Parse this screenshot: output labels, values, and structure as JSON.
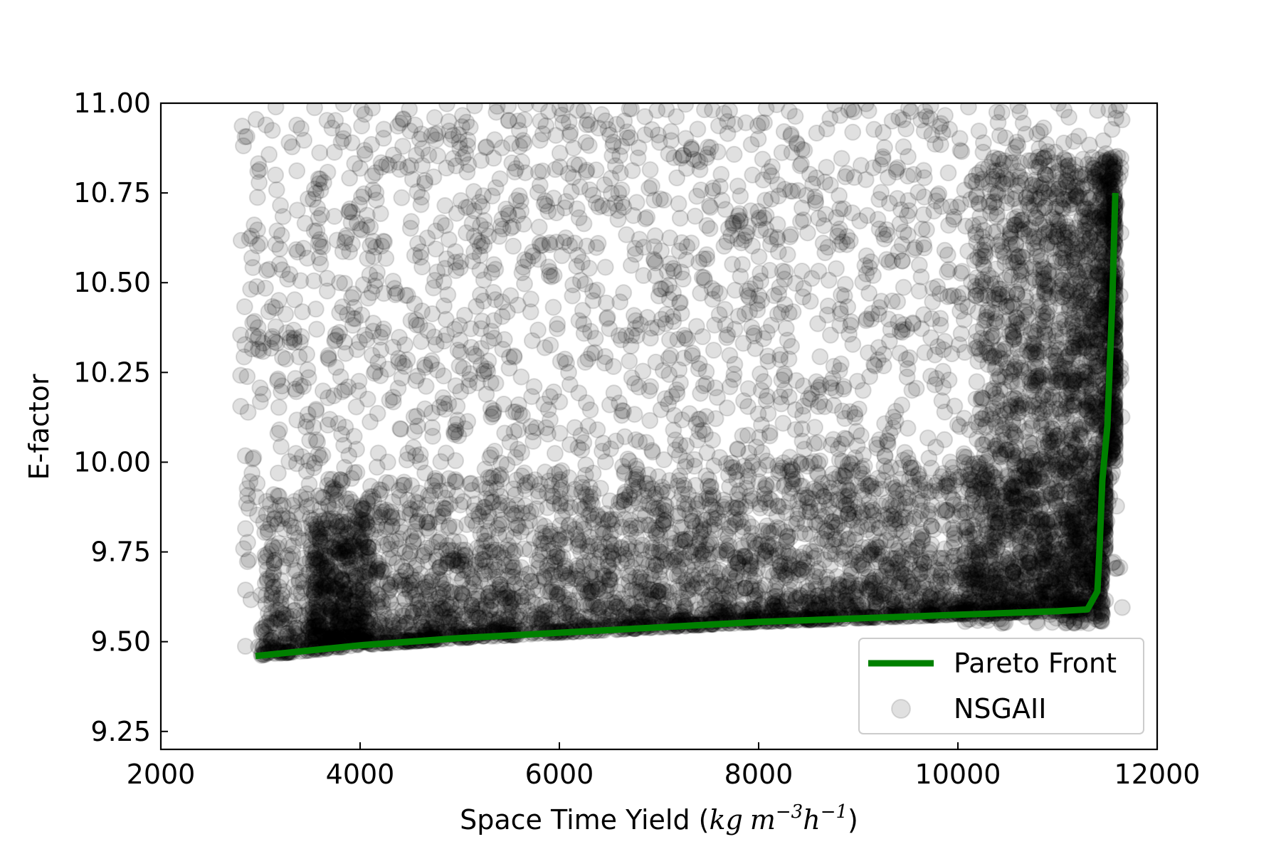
{
  "chart_data": {
    "type": "scatter",
    "xlabel": {
      "main": "Space Time Yield (",
      "unit_kg": "kg",
      "unit_m": "m",
      "exp_m": "−3",
      "unit_h": "h",
      "exp_h": "−1",
      "close": ")"
    },
    "ylabel": "E-factor",
    "xlim": [
      2000,
      12000
    ],
    "ylim": [
      9.2,
      11.0
    ],
    "xticks": [
      2000,
      4000,
      6000,
      8000,
      10000,
      12000
    ],
    "xtick_labels": [
      "2000",
      "4000",
      "6000",
      "8000",
      "10000",
      "12000"
    ],
    "yticks": [
      9.25,
      9.5,
      9.75,
      10.0,
      10.25,
      10.5,
      10.75,
      11.0
    ],
    "ytick_labels": [
      "9.25",
      "9.50",
      "9.75",
      "10.00",
      "10.25",
      "10.50",
      "10.75",
      "11.00"
    ],
    "grid": false,
    "legend_position": "lower-right",
    "series": [
      {
        "name": "Pareto Front",
        "kind": "line",
        "color": "#008000",
        "x": [
          2950,
          4000,
          5000,
          6000,
          7000,
          8000,
          9000,
          10000,
          11000,
          11300,
          11400,
          11420,
          11450,
          11500,
          11550,
          11580
        ],
        "y": [
          9.46,
          9.49,
          9.51,
          9.525,
          9.54,
          9.555,
          9.565,
          9.575,
          9.585,
          9.59,
          9.64,
          9.75,
          9.95,
          10.1,
          10.45,
          10.75
        ]
      },
      {
        "name": "NSGAII",
        "kind": "scatter",
        "color": "#000000",
        "alpha": 0.12,
        "x_range": [
          2800,
          11650
        ],
        "y_range": [
          9.45,
          11.0
        ],
        "front_y": [
          9.46,
          9.49,
          9.51,
          9.525,
          9.54,
          9.555,
          9.565,
          9.575,
          9.585,
          9.59
        ],
        "front_x": [
          2950,
          4000,
          5000,
          6000,
          7000,
          8000,
          9000,
          10000,
          11000,
          11300
        ]
      }
    ]
  }
}
